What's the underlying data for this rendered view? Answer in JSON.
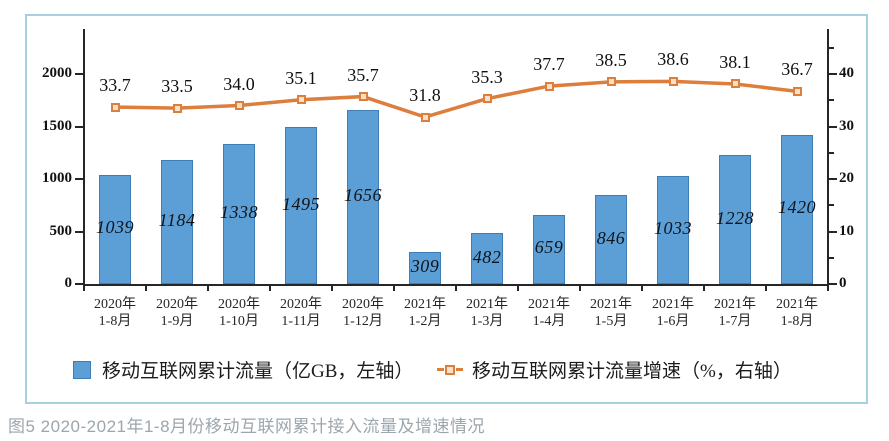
{
  "chart_data": {
    "type": "bar+line",
    "categories": [
      {
        "top": "2020年",
        "bottom": "1-8月"
      },
      {
        "top": "2020年",
        "bottom": "1-9月"
      },
      {
        "top": "2020年",
        "bottom": "1-10月"
      },
      {
        "top": "2020年",
        "bottom": "1-11月"
      },
      {
        "top": "2020年",
        "bottom": "1-12月"
      },
      {
        "top": "2021年",
        "bottom": "1-2月"
      },
      {
        "top": "2021年",
        "bottom": "1-3月"
      },
      {
        "top": "2021年",
        "bottom": "1-4月"
      },
      {
        "top": "2021年",
        "bottom": "1-5月"
      },
      {
        "top": "2021年",
        "bottom": "1-6月"
      },
      {
        "top": "2021年",
        "bottom": "1-7月"
      },
      {
        "top": "2021年",
        "bottom": "1-8月"
      }
    ],
    "series": [
      {
        "name": "移动互联网累计流量（亿GB，左轴）",
        "type": "bar",
        "axis": "left",
        "values": [
          1039,
          1184,
          1338,
          1495,
          1656,
          309,
          482,
          659,
          846,
          1033,
          1228,
          1420
        ]
      },
      {
        "name": "移动互联网累计流量增速（%，右轴）",
        "type": "line",
        "axis": "right",
        "values": [
          33.7,
          33.5,
          34.0,
          35.1,
          35.7,
          31.8,
          35.3,
          37.7,
          38.5,
          38.6,
          38.1,
          36.7
        ]
      }
    ],
    "left_axis": {
      "ticks": [
        0,
        500,
        1000,
        1500,
        2000
      ],
      "range": [
        0,
        2400
      ]
    },
    "right_axis": {
      "ticks": [
        0,
        10,
        20,
        30,
        40
      ],
      "minor_ticks": [
        5,
        15,
        25,
        35,
        45
      ],
      "range": [
        0,
        45
      ]
    },
    "grid": false,
    "legend_position": "bottom"
  },
  "colors": {
    "bar_fill": "#5c9fd6",
    "bar_border": "#3d7db8",
    "line": "#dd7e3c",
    "marker_fill": "#f9e0c8",
    "axis": "#262626",
    "frame_border": "#a9cede",
    "caption_text": "#9ba6ad"
  },
  "caption": "图5 2020-2021年1-8月份移动互联网累计接入流量及增速情况"
}
